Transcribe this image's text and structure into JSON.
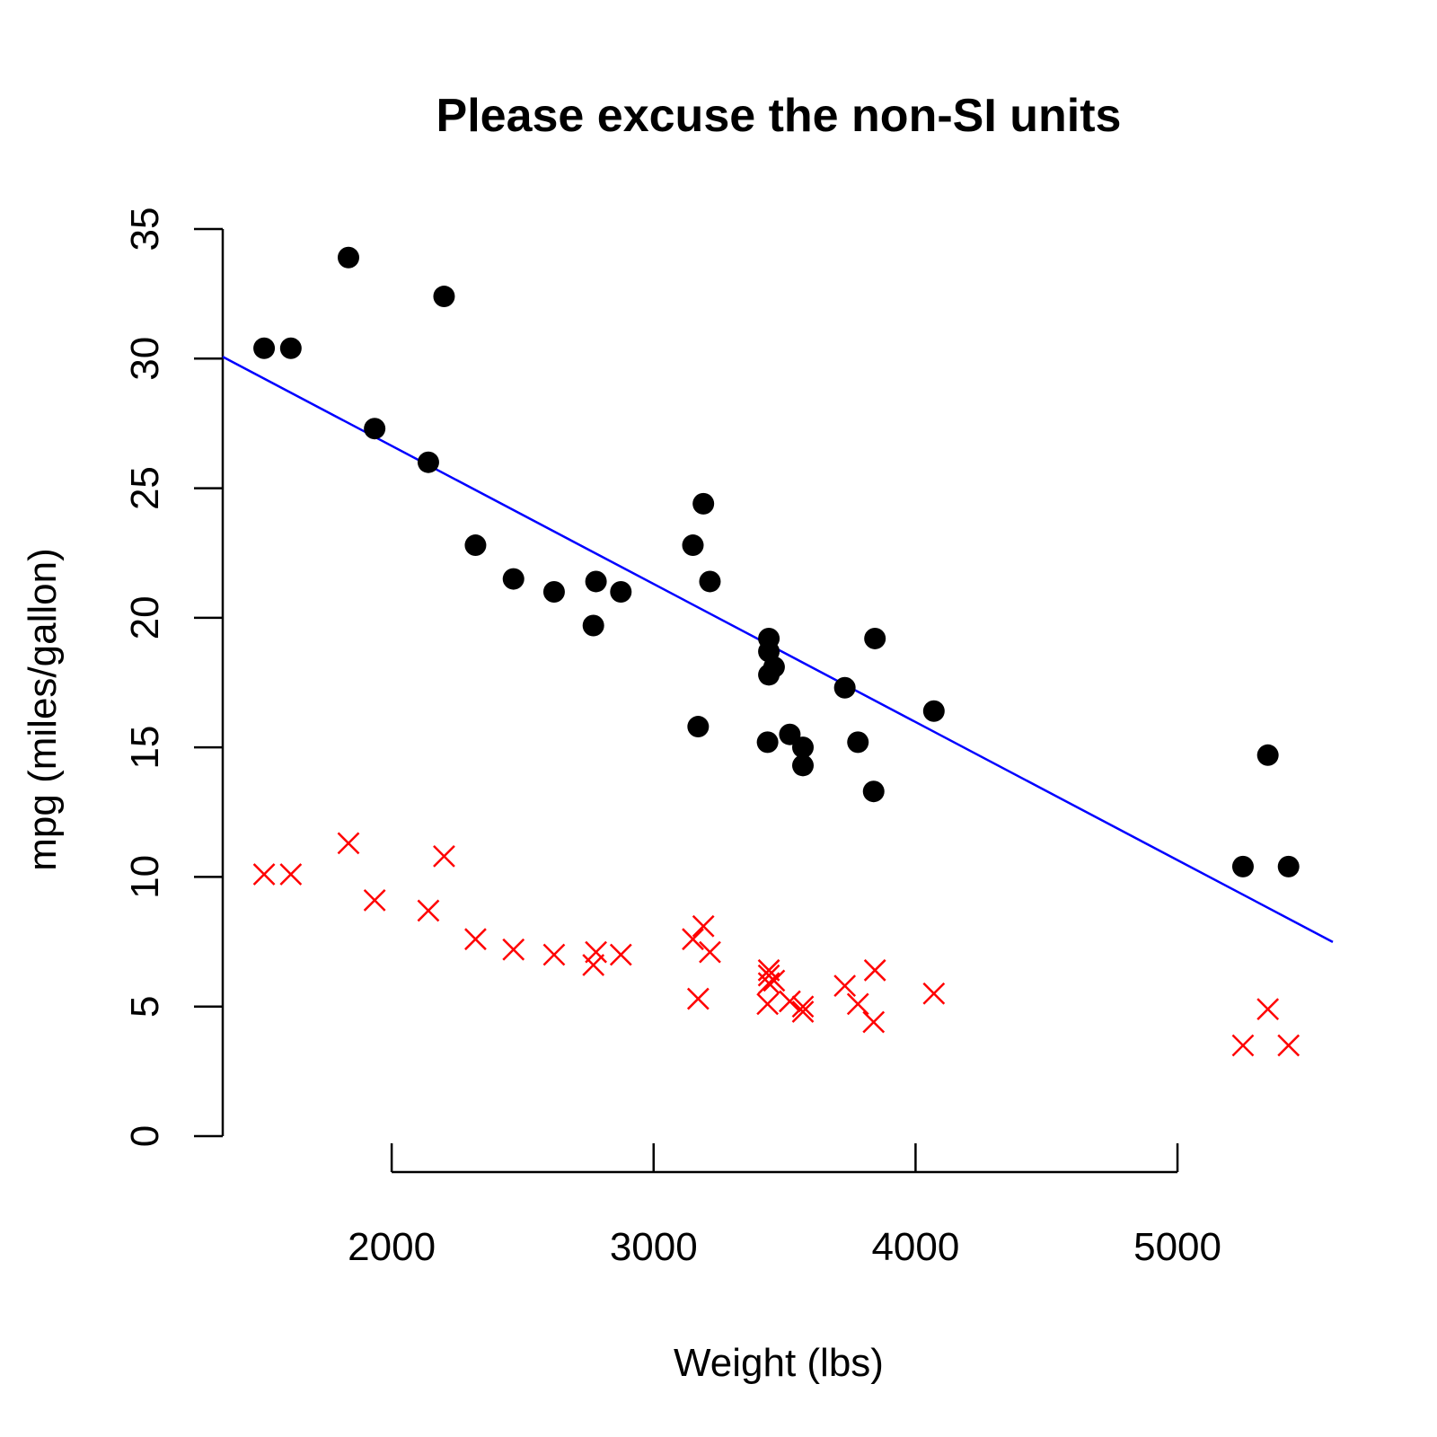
{
  "chart_data": {
    "type": "scatter",
    "title": "Please excuse the non-SI units",
    "xlabel": "Weight (lbs)",
    "ylabel": "mpg (miles/gallon)",
    "xlim": [
      1355,
      5593
    ],
    "ylim": [
      0,
      35
    ],
    "xticks": [
      2000,
      3000,
      4000,
      5000
    ],
    "yticks": [
      0,
      5,
      10,
      15,
      20,
      25,
      30,
      35
    ],
    "grid": false,
    "legend": "none",
    "series": [
      {
        "marker": "filled-circle",
        "color": "#000000",
        "points": [
          [
            2620,
            21.0
          ],
          [
            2875,
            21.0
          ],
          [
            2320,
            22.8
          ],
          [
            3215,
            21.4
          ],
          [
            3440,
            18.7
          ],
          [
            3460,
            18.1
          ],
          [
            3570,
            14.3
          ],
          [
            3190,
            24.4
          ],
          [
            3150,
            22.8
          ],
          [
            3440,
            19.2
          ],
          [
            3440,
            17.8
          ],
          [
            4070,
            16.4
          ],
          [
            3730,
            17.3
          ],
          [
            3780,
            15.2
          ],
          [
            5250,
            10.4
          ],
          [
            5424,
            10.4
          ],
          [
            5345,
            14.7
          ],
          [
            2200,
            32.4
          ],
          [
            1615,
            30.4
          ],
          [
            1835,
            33.9
          ],
          [
            2465,
            21.5
          ],
          [
            3520,
            15.5
          ],
          [
            3435,
            15.2
          ],
          [
            3840,
            13.3
          ],
          [
            3845,
            19.2
          ],
          [
            1935,
            27.3
          ],
          [
            2140,
            26.0
          ],
          [
            1513,
            30.4
          ],
          [
            3170,
            15.8
          ],
          [
            2770,
            19.7
          ],
          [
            3570,
            15.0
          ],
          [
            2780,
            21.4
          ]
        ]
      },
      {
        "marker": "x",
        "color": "#ff0000",
        "points": [
          [
            2620,
            7.0
          ],
          [
            2875,
            7.0
          ],
          [
            2320,
            7.6
          ],
          [
            3215,
            7.1
          ],
          [
            3440,
            6.2
          ],
          [
            3460,
            6.0
          ],
          [
            3570,
            4.8
          ],
          [
            3190,
            8.1
          ],
          [
            3150,
            7.6
          ],
          [
            3440,
            6.4
          ],
          [
            3440,
            5.9
          ],
          [
            4070,
            5.5
          ],
          [
            3730,
            5.8
          ],
          [
            3780,
            5.1
          ],
          [
            5250,
            3.5
          ],
          [
            5424,
            3.5
          ],
          [
            5345,
            4.9
          ],
          [
            2200,
            10.8
          ],
          [
            1615,
            10.1
          ],
          [
            1835,
            11.3
          ],
          [
            2465,
            7.2
          ],
          [
            3520,
            5.2
          ],
          [
            3435,
            5.1
          ],
          [
            3840,
            4.4
          ],
          [
            3845,
            6.4
          ],
          [
            1935,
            9.1
          ],
          [
            2140,
            8.7
          ],
          [
            1513,
            10.1
          ],
          [
            3170,
            5.3
          ],
          [
            2770,
            6.6
          ],
          [
            3570,
            5.0
          ],
          [
            2780,
            7.1
          ]
        ]
      }
    ],
    "regression_line": {
      "color": "#0000ff",
      "x": [
        1355,
        5593
      ],
      "y": [
        30.07,
        7.49
      ]
    }
  }
}
